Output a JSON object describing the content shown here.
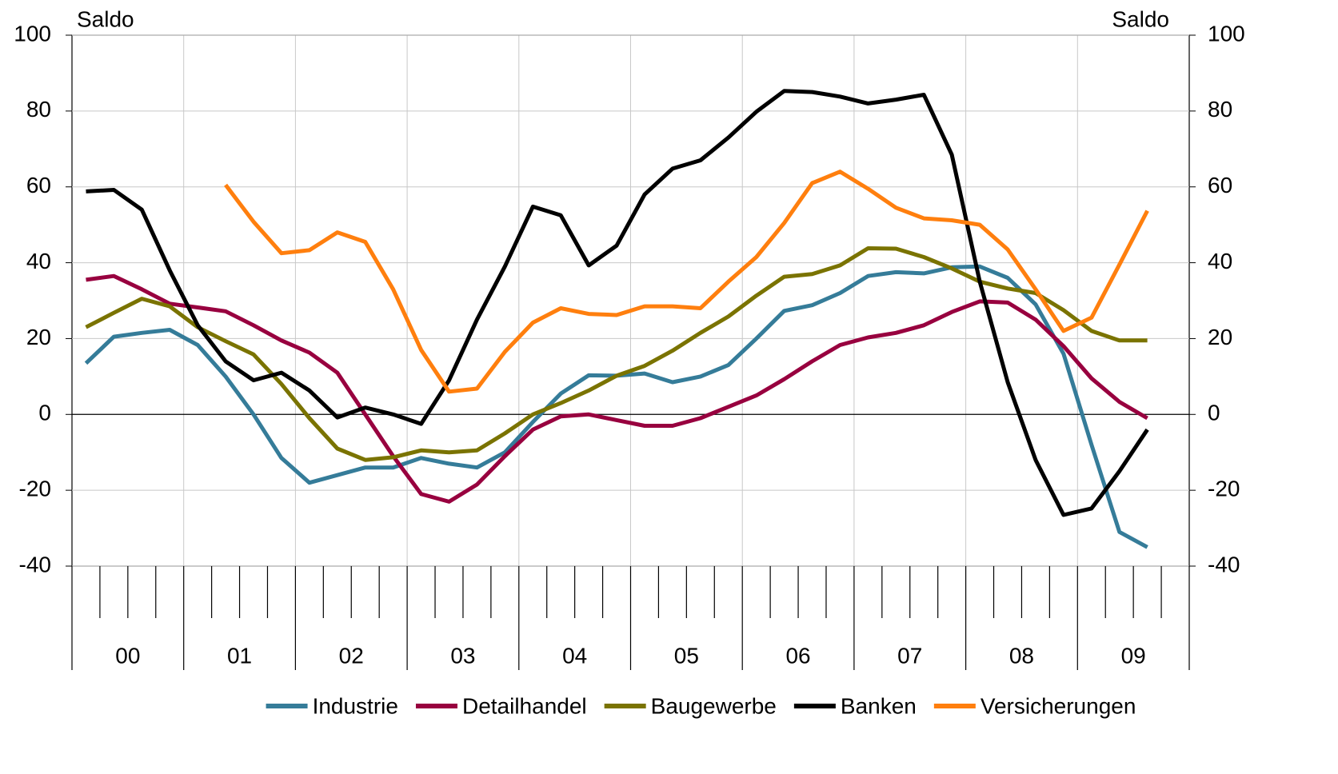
{
  "chart_data": {
    "type": "line",
    "y_label": "Saldo",
    "y2_label": "Saldo",
    "groups": [
      "00",
      "01",
      "02",
      "03",
      "04",
      "05",
      "06",
      "07",
      "08",
      "09"
    ],
    "categories": [
      null,
      null,
      null,
      null,
      null,
      null,
      null,
      null,
      null,
      null,
      null,
      null,
      null,
      null,
      null,
      null,
      null,
      null,
      null,
      null,
      null,
      null,
      null,
      null,
      null,
      null,
      null,
      null,
      null,
      null,
      null,
      null,
      null,
      null,
      null,
      null,
      null,
      null,
      null,
      null
    ],
    "ylim": [
      -40,
      100
    ],
    "yticks": [
      -40,
      -20,
      0,
      20,
      40,
      60,
      80,
      100
    ],
    "y2lim": [
      -40,
      100
    ],
    "y2ticks": [
      -40,
      -20,
      0,
      20,
      40,
      60,
      80,
      100
    ],
    "grid": true,
    "legend": "bottom",
    "series": [
      {
        "name": "Industrie",
        "color": "#357c99",
        "values": [
          13.5,
          20.5,
          21.5,
          22.3,
          18.3,
          10,
          0,
          -11.5,
          -18,
          -16,
          -14,
          -14,
          -11.5,
          -13,
          -14,
          -10,
          -2,
          5.5,
          10.3,
          10.2,
          10.8,
          8.5,
          10,
          13,
          20,
          27.3,
          28.8,
          32,
          36.5,
          37.5,
          37.2,
          38.8,
          39,
          36,
          29,
          16,
          -8,
          -31,
          -35,
          null
        ]
      },
      {
        "name": "Detailhandel",
        "color": "#98003f",
        "values": [
          35.5,
          36.5,
          33,
          29.2,
          28.2,
          27.2,
          23.5,
          19.5,
          16.3,
          11,
          0,
          -11,
          -21,
          -23,
          -18.5,
          -11,
          -4,
          -0.5,
          0,
          -1.5,
          -3,
          -3,
          -1,
          2,
          5,
          9.3,
          14,
          18.3,
          20.3,
          21.5,
          23.5,
          27,
          29.8,
          29.5,
          25,
          18,
          9.5,
          3.3,
          -1,
          null
        ]
      },
      {
        "name": "Baugewerbe",
        "color": "#7a7300",
        "values": [
          23,
          26.8,
          30.5,
          28.5,
          23,
          19.3,
          15.8,
          8,
          -1,
          -9,
          -12,
          -11.3,
          -9.5,
          -10,
          -9.5,
          -5,
          0,
          3,
          6.3,
          10.2,
          12.8,
          16.8,
          21.5,
          25.8,
          31.3,
          36.3,
          37,
          39.3,
          43.8,
          43.7,
          41.5,
          38.5,
          35,
          33.2,
          32,
          27.5,
          22,
          19.5,
          19.5,
          null
        ]
      },
      {
        "name": "Banken",
        "color": "#000000",
        "values": [
          58.8,
          59.2,
          54,
          38,
          23.5,
          14,
          9,
          11,
          6.3,
          -0.8,
          1.8,
          0,
          -2.5,
          9,
          25,
          39,
          54.8,
          52.5,
          39.3,
          44.5,
          58,
          64.8,
          67,
          73,
          79.8,
          85.3,
          85,
          83.8,
          82,
          83,
          84.3,
          68.5,
          35,
          8.5,
          -12,
          -26.5,
          -24.8,
          -15,
          -4,
          null
        ]
      },
      {
        "name": "Versicherungen",
        "color": "#ff7f0e",
        "values": [
          null,
          null,
          null,
          null,
          null,
          60.5,
          50.8,
          42.5,
          43.3,
          48,
          45.5,
          33,
          17,
          6,
          6.8,
          16.5,
          24.2,
          28,
          26.5,
          26.2,
          28.5,
          28.5,
          28,
          35,
          41.5,
          50.5,
          61,
          64,
          59.5,
          54.5,
          51.7,
          51.2,
          50,
          43.5,
          33,
          22,
          25.5,
          39.5,
          53.7,
          null
        ]
      }
    ]
  }
}
